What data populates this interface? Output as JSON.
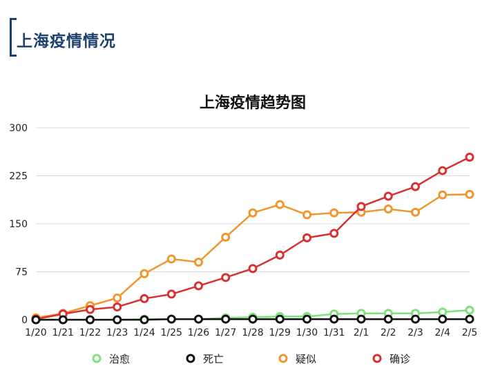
{
  "header": {
    "title": "上海疫情情况"
  },
  "chart_data": {
    "type": "line",
    "title": "上海疫情趋势图",
    "xlabel": "",
    "ylabel": "",
    "ylim": [
      0,
      300
    ],
    "yticks": [
      0,
      75,
      150,
      225,
      300
    ],
    "grid": true,
    "legend_position": "bottom",
    "x": [
      "1/20",
      "1/21",
      "1/22",
      "1/23",
      "1/24",
      "1/25",
      "1/26",
      "1/27",
      "1/28",
      "1/29",
      "1/30",
      "1/31",
      "2/1",
      "2/2",
      "2/3",
      "2/4",
      "2/5"
    ],
    "series": [
      {
        "name": "治愈",
        "color": "#7ee27a",
        "values": [
          0,
          0,
          0,
          0,
          1,
          1,
          1,
          3,
          4,
          5,
          5,
          9,
          10,
          10,
          10,
          12,
          15
        ]
      },
      {
        "name": "死亡",
        "color": "#111111",
        "values": [
          0,
          0,
          0,
          0,
          0,
          1,
          1,
          1,
          1,
          1,
          1,
          1,
          1,
          1,
          1,
          1,
          1
        ]
      },
      {
        "name": "疑似",
        "color": "#f0962e",
        "values": [
          3,
          10,
          22,
          34,
          72,
          95,
          90,
          129,
          167,
          180,
          164,
          167,
          168,
          173,
          168,
          195,
          196
        ]
      },
      {
        "name": "确诊",
        "color": "#d93030",
        "values": [
          1,
          9,
          16,
          20,
          33,
          40,
          53,
          66,
          80,
          101,
          128,
          135,
          177,
          193,
          208,
          233,
          254
        ]
      }
    ]
  }
}
